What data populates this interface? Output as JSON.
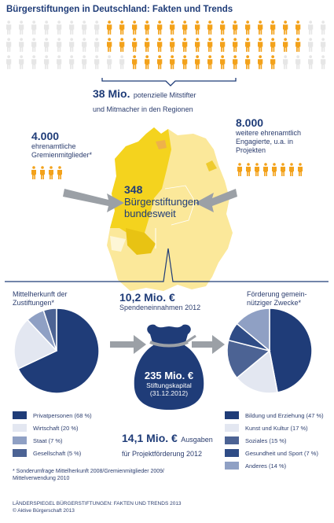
{
  "title": "Bürgerstiftungen in Deutschland: Fakten und Trends",
  "stats": {
    "potential_value": "38 Mio.",
    "potential_text_1": "potenzielle Mitstifter",
    "potential_text_2": "und Mitmacher in den Regionen",
    "board_value": "4.000",
    "board_text_1": "ehrenamtliche",
    "board_text_2": "Gremienmitglieder*",
    "volunteers_value": "8.000",
    "volunteers_text_1": "weitere ehrenamtlich",
    "volunteers_text_2": "Engagierte, u.a. in",
    "volunteers_text_3": "Projekten",
    "count_value": "348",
    "count_text_1": "Bürgerstiftungen",
    "count_text_2": "bundesweit",
    "donations_value": "10,2 Mio. €",
    "donations_text": "Spendeneinnahmen 2012",
    "capital_value": "235 Mio. €",
    "capital_text_1": "Stiftungskapital",
    "capital_text_2": "(31.12.2012)",
    "spending_value": "14,1 Mio. €",
    "spending_text_1": "Ausgaben",
    "spending_text_2": "für Projektförderung 2012"
  },
  "left_chart_title_1": "Mittelherkunft der",
  "left_chart_title_2": "Zustiftungen*",
  "right_chart_title_1": "Förderung gemein-",
  "right_chart_title_2": "nütziger Zwecke*",
  "chart_data": [
    {
      "type": "pie",
      "title": "Mittelherkunft der Zustiftungen*",
      "categories": [
        "Privatpersonen",
        "Wirtschaft",
        "Staat",
        "Gesellschaft"
      ],
      "values": [
        68,
        20,
        7,
        5
      ],
      "colors": [
        "#1f3c78",
        "#e3e7f1",
        "#8fa0c4",
        "#4c6394"
      ],
      "legend_labels": [
        "Privatpersonen (68 %)",
        "Wirtschaft (20 %)",
        "Staat (7 %)",
        "Gesellschaft (5 %)"
      ]
    },
    {
      "type": "pie",
      "title": "Förderung gemeinnütziger Zwecke*",
      "categories": [
        "Bildung und Erziehung",
        "Kunst und Kultur",
        "Soziales",
        "Gesundheit und Sport",
        "Anderes"
      ],
      "values": [
        47,
        17,
        15,
        7,
        14
      ],
      "colors": [
        "#1f3c78",
        "#e3e7f1",
        "#4c6394",
        "#2f4c86",
        "#8fa0c4"
      ],
      "legend_labels": [
        "Bildung und Erziehung (47 %)",
        "Kunst und Kultur (17 %)",
        "Soziales (15 %)",
        "Gesundheit und Sport (7 %)",
        "Anderes (14 %)"
      ]
    }
  ],
  "footnote_1": "* Sonderumfrage Mittelherkunft 2008/Gremienmitglieder 2009/",
  "footnote_2": "Mittelverwendung 2010",
  "source_1": "LÄNDERSPIEGEL BÜRGERSTIFTUNGEN: FAKTEN UND TRENDS 2013",
  "source_2": "© Aktive Bürgerschaft 2013",
  "icons": {
    "person": "person-icon",
    "arrow": "arrow-right-icon",
    "bag": "money-bag-icon"
  }
}
